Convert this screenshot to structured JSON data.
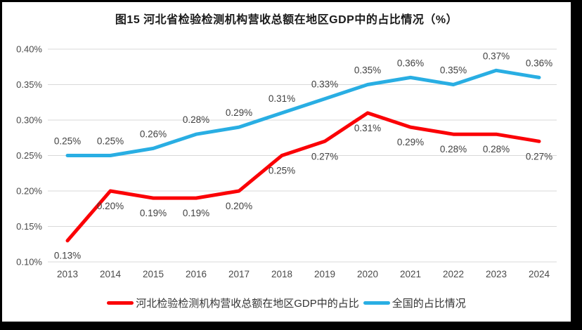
{
  "window": {
    "frame_color": "#000000",
    "page_background": "#ffffff"
  },
  "colors": {
    "gridline": "#d9d9d9",
    "axis_text": "#4a4a4a",
    "data_label_text": "#404040",
    "title_text": "#1a1a1a"
  },
  "chart_data": {
    "type": "line",
    "title": "图15 河北省检验检测机构营收总额在地区GDP中的占比情况（%）",
    "categories": [
      "2013",
      "2014",
      "2015",
      "2016",
      "2017",
      "2018",
      "2019",
      "2020",
      "2021",
      "2022",
      "2023",
      "2024"
    ],
    "series": [
      {
        "name": "河北检验检测机构营收总额在地区GDP中的占比",
        "color": "#fb0006",
        "values": [
          0.13,
          0.2,
          0.19,
          0.19,
          0.2,
          0.25,
          0.27,
          0.31,
          0.29,
          0.28,
          0.28,
          0.27
        ],
        "data_labels": [
          "0.13%",
          "0.20%",
          "0.19%",
          "0.19%",
          "0.20%",
          "0.25%",
          "0.27%",
          "0.31%",
          "0.29%",
          "0.28%",
          "0.28%",
          "0.27%"
        ],
        "label_position": "below"
      },
      {
        "name": "全国的占比情况",
        "color": "#29aee3",
        "values": [
          0.25,
          0.25,
          0.26,
          0.28,
          0.29,
          0.31,
          0.33,
          0.35,
          0.36,
          0.35,
          0.37,
          0.36
        ],
        "data_labels": [
          "0.25%",
          "0.25%",
          "0.26%",
          "0.28%",
          "0.29%",
          "0.31%",
          "0.33%",
          "0.35%",
          "0.36%",
          "0.35%",
          "0.37%",
          "0.36%"
        ],
        "label_position": "above"
      }
    ],
    "xlabel": "",
    "ylabel": "",
    "ylim": [
      0.1,
      0.4
    ],
    "ytick_step": 0.05,
    "ytick_labels": [
      "0.10%",
      "0.15%",
      "0.20%",
      "0.25%",
      "0.30%",
      "0.35%",
      "0.40%"
    ],
    "grid": true,
    "legend_position": "bottom"
  }
}
